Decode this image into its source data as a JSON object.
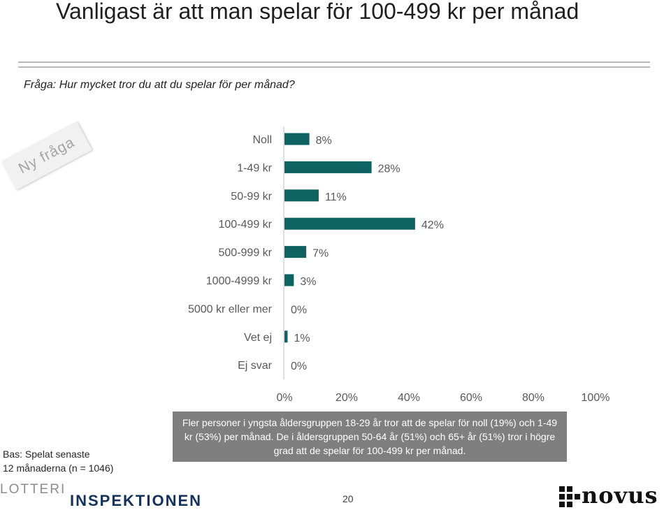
{
  "header": {
    "title": "Vanligast är att man spelar för 100-499 kr per månad",
    "question": "Fråga: Hur mycket tror du att du spelar för per månad?"
  },
  "ribbon": {
    "label": "Ny fråga"
  },
  "chart_data": {
    "type": "bar",
    "orientation": "horizontal",
    "categories": [
      "Noll",
      "1-49 kr",
      "50-99 kr",
      "100-499 kr",
      "500-999 kr",
      "1000-4999 kr",
      "5000 kr eller mer",
      "Vet ej",
      "Ej svar"
    ],
    "values": [
      8,
      28,
      11,
      42,
      7,
      3,
      0,
      1,
      0
    ],
    "value_labels": [
      "8%",
      "28%",
      "11%",
      "42%",
      "7%",
      "3%",
      "0%",
      "1%",
      "0%"
    ],
    "xlim": [
      0,
      100
    ],
    "xticks": [
      "0%",
      "20%",
      "40%",
      "60%",
      "80%",
      "100%"
    ],
    "bar_color": "#0d6262",
    "grid": false,
    "legend": "none"
  },
  "note": {
    "text": "Fler personer i yngsta åldersgruppen 18-29 år tror att de spelar för noll (19%) och 1-49 kr (53%) per månad. De i åldersgruppen 50-64 år (51%) och 65+ år (51%) tror i högre grad att de spelar för 100-499 kr per månad."
  },
  "base": {
    "line1": "Bas: Spelat senaste",
    "line2": "12 månaderna (n = 1046)"
  },
  "footer": {
    "page_number": "20",
    "logo_left_top": "LOTTERI",
    "logo_left_bottom": "INSPEKTIONEN",
    "logo_right": "novus"
  }
}
